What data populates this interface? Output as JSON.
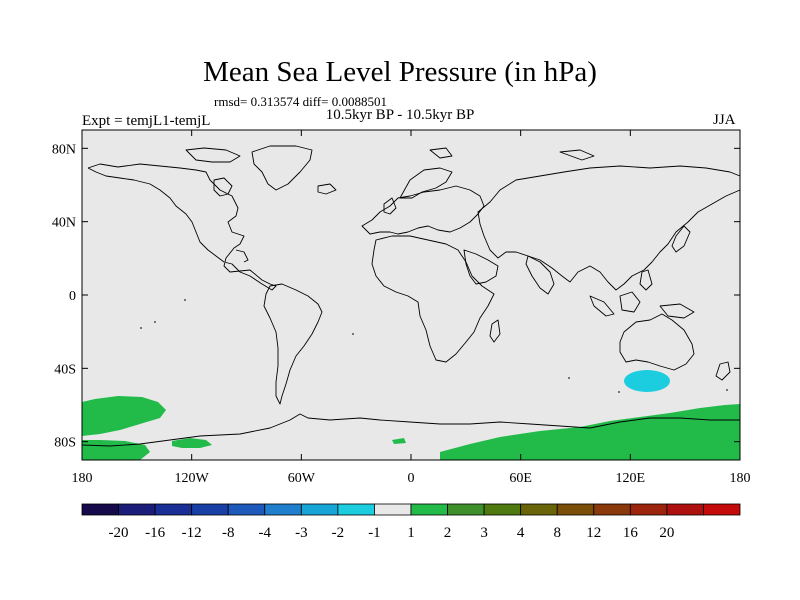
{
  "title": "Mean Sea Level Pressure (in hPa)",
  "stats": "rmsd= 0.313574 diff= 0.0088501",
  "period": "10.5kyr BP - 10.5kyr BP",
  "experiment": "Expt = temjL1-temjL",
  "season": "JJA",
  "axes": {
    "lon_ticks": [
      {
        "value": -180,
        "label": "180"
      },
      {
        "value": -120,
        "label": "120W"
      },
      {
        "value": -60,
        "label": "60W"
      },
      {
        "value": 0,
        "label": "0"
      },
      {
        "value": 60,
        "label": "60E"
      },
      {
        "value": 120,
        "label": "120E"
      },
      {
        "value": 180,
        "label": "180"
      }
    ],
    "lat_ticks": [
      {
        "value": 80,
        "label": "80N"
      },
      {
        "value": 40,
        "label": "40N"
      },
      {
        "value": 0,
        "label": "0"
      },
      {
        "value": -40,
        "label": "40S"
      },
      {
        "value": -80,
        "label": "80S"
      }
    ],
    "lon_range": [
      -180,
      180
    ],
    "lat_range": [
      -90,
      90
    ]
  },
  "colorbar": {
    "colors": [
      "#160a4a",
      "#1c1d7a",
      "#1a2f96",
      "#183fa5",
      "#1d58bb",
      "#1f7fcc",
      "#16a5d6",
      "#1ccde0",
      "#e8e8e8",
      "#22bb4a",
      "#3f8f2a",
      "#4f7a10",
      "#6a6408",
      "#7a4e08",
      "#8a3a0a",
      "#9c240c",
      "#ad100e",
      "#c40a0a"
    ],
    "labels": [
      "-20",
      "-16",
      "-12",
      "-8",
      "-4",
      "-3",
      "-2",
      "-1",
      "1",
      "2",
      "3",
      "4",
      "8",
      "12",
      "16",
      "20"
    ]
  },
  "colors": {
    "background": "#e8e8e8",
    "positive": "#22bb4a",
    "negative": "#1ccde0",
    "coast": "#000000"
  }
}
